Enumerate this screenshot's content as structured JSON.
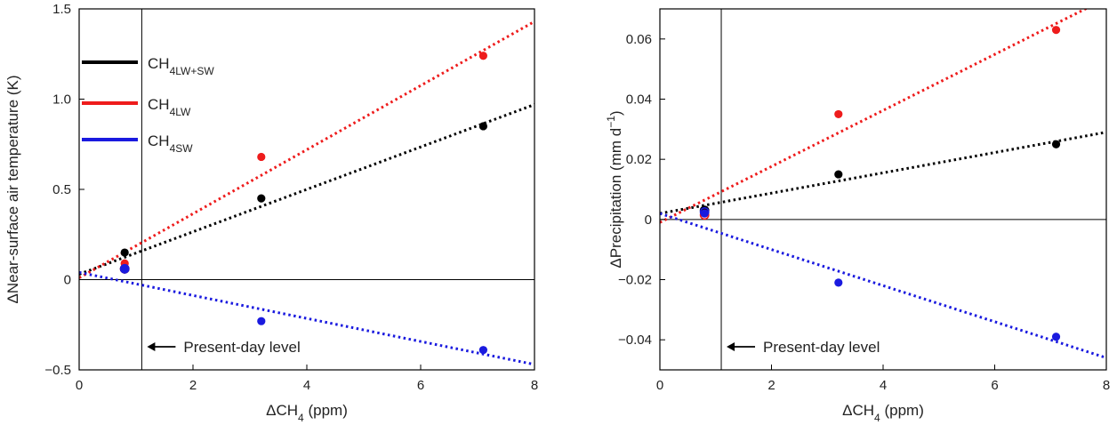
{
  "chart_data": [
    {
      "type": "scatter",
      "xlabel": "ΔCH",
      "xlabel_sub": "4",
      "xlabel_unit": " (ppm)",
      "ylabel": "ΔNear-surface air temperature (K)",
      "xlim": [
        0,
        8
      ],
      "ylim": [
        -0.5,
        1.5
      ],
      "x_ticks": [
        0,
        2,
        4,
        6,
        8
      ],
      "x_tick_labels": [
        "0",
        "2",
        "4",
        "6",
        "8"
      ],
      "y_ticks": [
        -0.5,
        0,
        0.5,
        1.0,
        1.5
      ],
      "y_tick_labels": [
        "−0.5",
        "0",
        "0.5",
        "1.0",
        "1.5"
      ],
      "present_day_x": 1.1,
      "zero_line": true,
      "annotation": "Present-day level",
      "legend_position": "top-left",
      "series": [
        {
          "name": "CH4LW+SW",
          "legend_main": "CH",
          "legend_sub": "4LW+SW",
          "color": "#000000",
          "x": [
            0.8,
            3.2,
            7.1
          ],
          "y": [
            0.15,
            0.45,
            0.85
          ],
          "open_marker": [
            0.8,
            0.06
          ],
          "fit": {
            "x": [
              0,
              8
            ],
            "y": [
              0.03,
              0.97
            ]
          }
        },
        {
          "name": "CH4LW",
          "legend_main": "CH",
          "legend_sub": "4LW",
          "color": "#ee1c1c",
          "x": [
            0.8,
            3.2,
            7.1
          ],
          "y": [
            0.09,
            0.68,
            1.24
          ],
          "open_marker": [
            0.8,
            0.06
          ],
          "fit": {
            "x": [
              0,
              8
            ],
            "y": [
              0.01,
              1.43
            ]
          }
        },
        {
          "name": "CH4SW",
          "legend_main": "CH",
          "legend_sub": "4SW",
          "color": "#1a1adf",
          "x": [
            0.8,
            3.2,
            7.1
          ],
          "y": [
            0.06,
            -0.23,
            -0.39
          ],
          "open_marker": [
            0.8,
            0.06
          ],
          "fit": {
            "x": [
              0,
              8
            ],
            "y": [
              0.04,
              -0.47
            ]
          }
        }
      ]
    },
    {
      "type": "scatter",
      "xlabel": "ΔCH",
      "xlabel_sub": "4",
      "xlabel_unit": " (ppm)",
      "ylabel": "ΔPrecipitation (mm d",
      "ylabel_sup": "−1",
      "ylabel_end": ")",
      "xlim": [
        0,
        8
      ],
      "ylim": [
        -0.05,
        0.07
      ],
      "x_ticks": [
        0,
        2,
        4,
        6,
        8
      ],
      "x_tick_labels": [
        "0",
        "2",
        "4",
        "6",
        "8"
      ],
      "y_ticks": [
        -0.04,
        -0.02,
        0,
        0.02,
        0.04,
        0.06
      ],
      "y_tick_labels": [
        "−0.04",
        "−0.02",
        "0",
        "0.02",
        "0.04",
        "0.06"
      ],
      "present_day_x": 1.1,
      "zero_line": true,
      "annotation": "Present-day level",
      "series": [
        {
          "name": "CH4LW+SW",
          "color": "#000000",
          "x": [
            0.8,
            3.2,
            7.1
          ],
          "y": [
            0.003,
            0.015,
            0.025
          ],
          "open_marker": [
            0.8,
            0.003
          ],
          "fit": {
            "x": [
              0,
              8
            ],
            "y": [
              0.002,
              0.029
            ]
          }
        },
        {
          "name": "CH4LW",
          "color": "#ee1c1c",
          "x": [
            0.8,
            3.2,
            7.1
          ],
          "y": [
            0.002,
            0.035,
            0.063
          ],
          "open_marker": [
            0.8,
            0.0015
          ],
          "fit": {
            "x": [
              0,
              8
            ],
            "y": [
              -0.001,
              0.0735
            ]
          }
        },
        {
          "name": "CH4SW",
          "color": "#1a1adf",
          "x": [
            0.8,
            3.2,
            7.1
          ],
          "y": [
            0.002,
            -0.021,
            -0.039
          ],
          "open_marker": [
            0.8,
            0.0025
          ],
          "fit": {
            "x": [
              0,
              8
            ],
            "y": [
              0.002,
              -0.046
            ]
          }
        }
      ]
    }
  ]
}
